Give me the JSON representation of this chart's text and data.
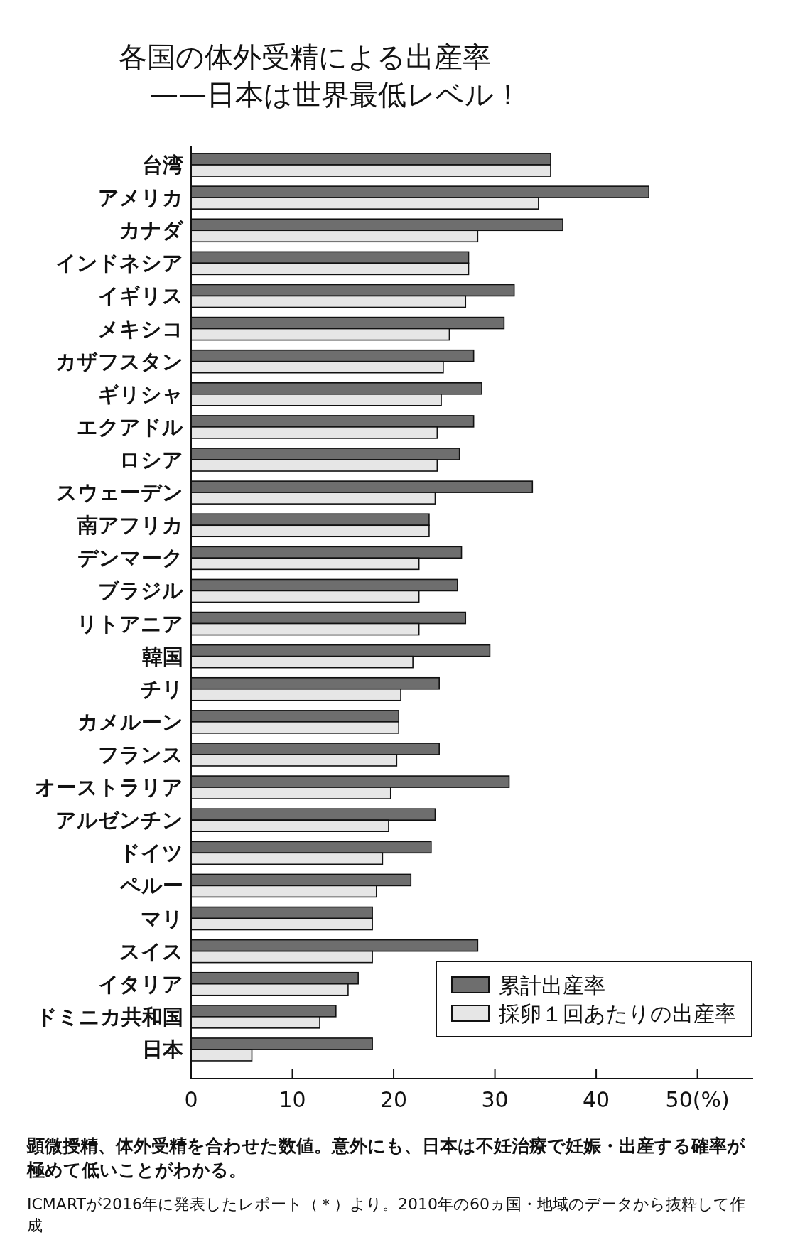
{
  "chart_data": {
    "type": "bar",
    "orientation": "horizontal",
    "title": "各国の体外受精による出産率",
    "subtitle": "——日本は世界最低レベル！",
    "categories": [
      "台湾",
      "アメリカ",
      "カナダ",
      "インドネシア",
      "イギリス",
      "メキシコ",
      "カザフスタン",
      "ギリシャ",
      "エクアドル",
      "ロシア",
      "スウェーデン",
      "南アフリカ",
      "デンマーク",
      "ブラジル",
      "リトアニア",
      "韓国",
      "チリ",
      "カメルーン",
      "フランス",
      "オーストラリア",
      "アルゼンチン",
      "ドイツ",
      "ペルー",
      "マリ",
      "スイス",
      "イタリア",
      "ドミニカ共和国",
      "日本"
    ],
    "series": [
      {
        "name": "累計出産率",
        "color": "#6e6e6e",
        "values": [
          35.5,
          45.2,
          36.7,
          27.4,
          31.9,
          30.9,
          27.9,
          28.7,
          27.9,
          26.5,
          33.7,
          23.5,
          26.7,
          26.3,
          27.1,
          29.5,
          24.5,
          20.5,
          24.5,
          31.4,
          24.1,
          23.7,
          21.7,
          17.9,
          28.3,
          16.5,
          14.3,
          17.9
        ]
      },
      {
        "name": "採卵１回あたりの出産率",
        "color": "#e6e6e6",
        "values": [
          35.5,
          34.3,
          28.3,
          27.4,
          27.1,
          25.5,
          24.9,
          24.7,
          24.3,
          24.3,
          24.1,
          23.5,
          22.5,
          22.5,
          22.5,
          21.9,
          20.7,
          20.5,
          20.3,
          19.7,
          19.5,
          18.9,
          18.3,
          17.9,
          17.9,
          15.5,
          12.7,
          6.0
        ]
      }
    ],
    "xlim": [
      0,
      55.5
    ],
    "xticks": [
      0,
      10,
      20,
      30,
      40,
      {
        "value": 50,
        "label": "50(%)"
      }
    ],
    "legend": "bottom right",
    "annotations": [
      "顕微授精、体外受精を合わせた数値。意外にも、日本は不妊治療で妊娠・出産する確率が極めて低いことがわかる。",
      "ICMARTが2016年に発表したレポート（＊）より。2010年の60ヵ国・地域のデータから抜粋して作成"
    ]
  }
}
